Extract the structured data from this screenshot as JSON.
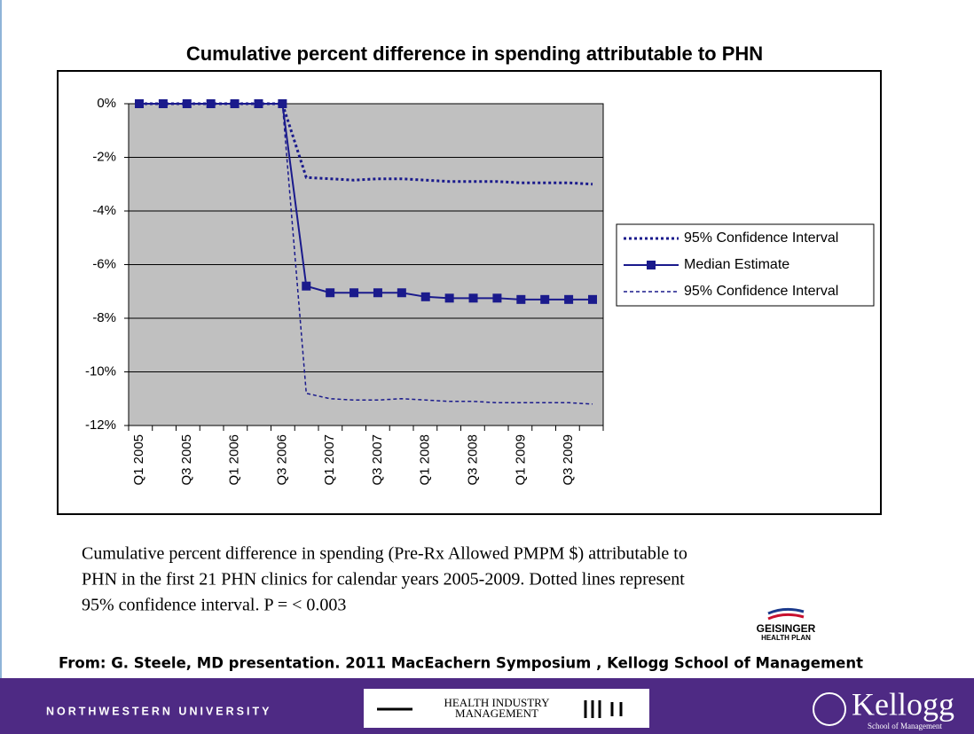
{
  "chart_data": {
    "type": "line",
    "title": "Cumulative percent difference in spending attributable to PHN",
    "categories": [
      "Q1 2005",
      null,
      "Q3 2005",
      null,
      "Q1 2006",
      null,
      "Q3 2006",
      null,
      "Q1 2007",
      null,
      "Q3 2007",
      null,
      "Q1 2008",
      null,
      "Q3 2008",
      null,
      "Q1 2009",
      null,
      "Q3 2009",
      null
    ],
    "series": [
      {
        "name": "95% Confidence Interval",
        "color": "#1a1a8c",
        "style": "dotted",
        "values": [
          0,
          0,
          0,
          0,
          0,
          0,
          0,
          -2.75,
          -2.8,
          -2.85,
          -2.8,
          -2.8,
          -2.85,
          -2.9,
          -2.9,
          -2.9,
          -2.95,
          -2.95,
          -2.95,
          -3.0
        ]
      },
      {
        "name": "Median Estimate",
        "color": "#1a1a8c",
        "style": "solid-square",
        "values": [
          0,
          0,
          0,
          0,
          0,
          0,
          0,
          -6.8,
          -7.05,
          -7.05,
          -7.05,
          -7.05,
          -7.2,
          -7.25,
          -7.25,
          -7.25,
          -7.3,
          -7.3,
          -7.3,
          -7.3
        ]
      },
      {
        "name": "95% Confidence Interval",
        "color": "#1a1a8c",
        "style": "dashed",
        "values": [
          0,
          0,
          0,
          0,
          0,
          0,
          0,
          -10.8,
          -11.0,
          -11.05,
          -11.05,
          -11.0,
          -11.05,
          -11.1,
          -11.1,
          -11.15,
          -11.15,
          -11.15,
          -11.15,
          -11.2
        ]
      }
    ],
    "ylim": [
      -12,
      0
    ],
    "yticks": [
      {
        "value": 0,
        "label": "0%"
      },
      {
        "value": -2,
        "label": "-2%"
      },
      {
        "value": -4,
        "label": "-4%"
      },
      {
        "value": -6,
        "label": "-6%"
      },
      {
        "value": -8,
        "label": "-8%"
      },
      {
        "value": -10,
        "label": "-10%"
      },
      {
        "value": -12,
        "label": "-12%"
      }
    ],
    "grid": true,
    "legend": "right",
    "plot_background": "#c0c0c0"
  },
  "caption": [
    "Cumulative percent difference in spending (Pre-Rx Allowed PMPM $) attributable to",
    "PHN in the first 21 PHN clinics for calendar years 2005-2009.  Dotted lines represent",
    "95% confidence interval.  P = < 0.003"
  ],
  "logo": [
    "GEISINGER",
    "HEALTH PLAN"
  ],
  "source": "From: G. Steele, MD presentation. 2011 MacEachern Symposium  , Kellogg School of Management",
  "footer": {
    "left": "NORTHWESTERN UNIVERSITY",
    "center": [
      "HEALTH INDUSTRY",
      "MANAGEMENT"
    ],
    "right": "Kellogg",
    "right_sub": "School of Management"
  }
}
